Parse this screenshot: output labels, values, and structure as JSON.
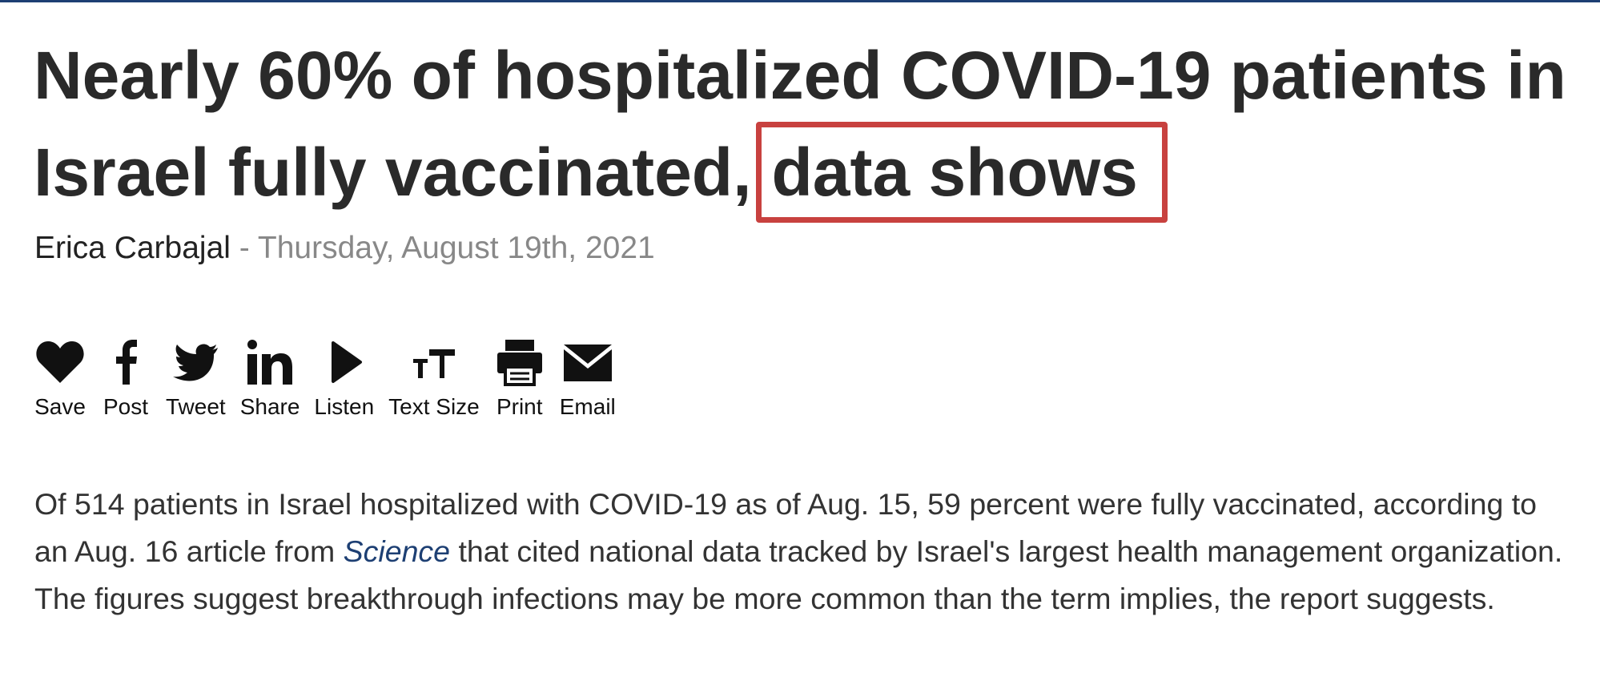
{
  "header": {
    "title_lines": [
      "Nearly 60% of hospitalized COVID-19 patients in",
      "Israel fully vaccinated,"
    ],
    "title_highlight": "data shows"
  },
  "byline": {
    "author": "Erica Carbajal",
    "separator": "-",
    "date": "Thursday, August 19th, 2021"
  },
  "actions": [
    "Save",
    "Post",
    "Tweet",
    "Share",
    "Listen",
    "Text Size",
    "Print",
    "Email"
  ],
  "body": {
    "before_link": "Of 514 patients in Israel hospitalized with COVID-19 as of Aug. 15, 59 percent were fully vaccinated, according to an Aug. 16 article from",
    "link": "Science",
    "after_link": "that cited national data tracked by Israel's largest health management organization. The figures suggest breakthrough infections may be more common than the term implies, the report suggests."
  }
}
